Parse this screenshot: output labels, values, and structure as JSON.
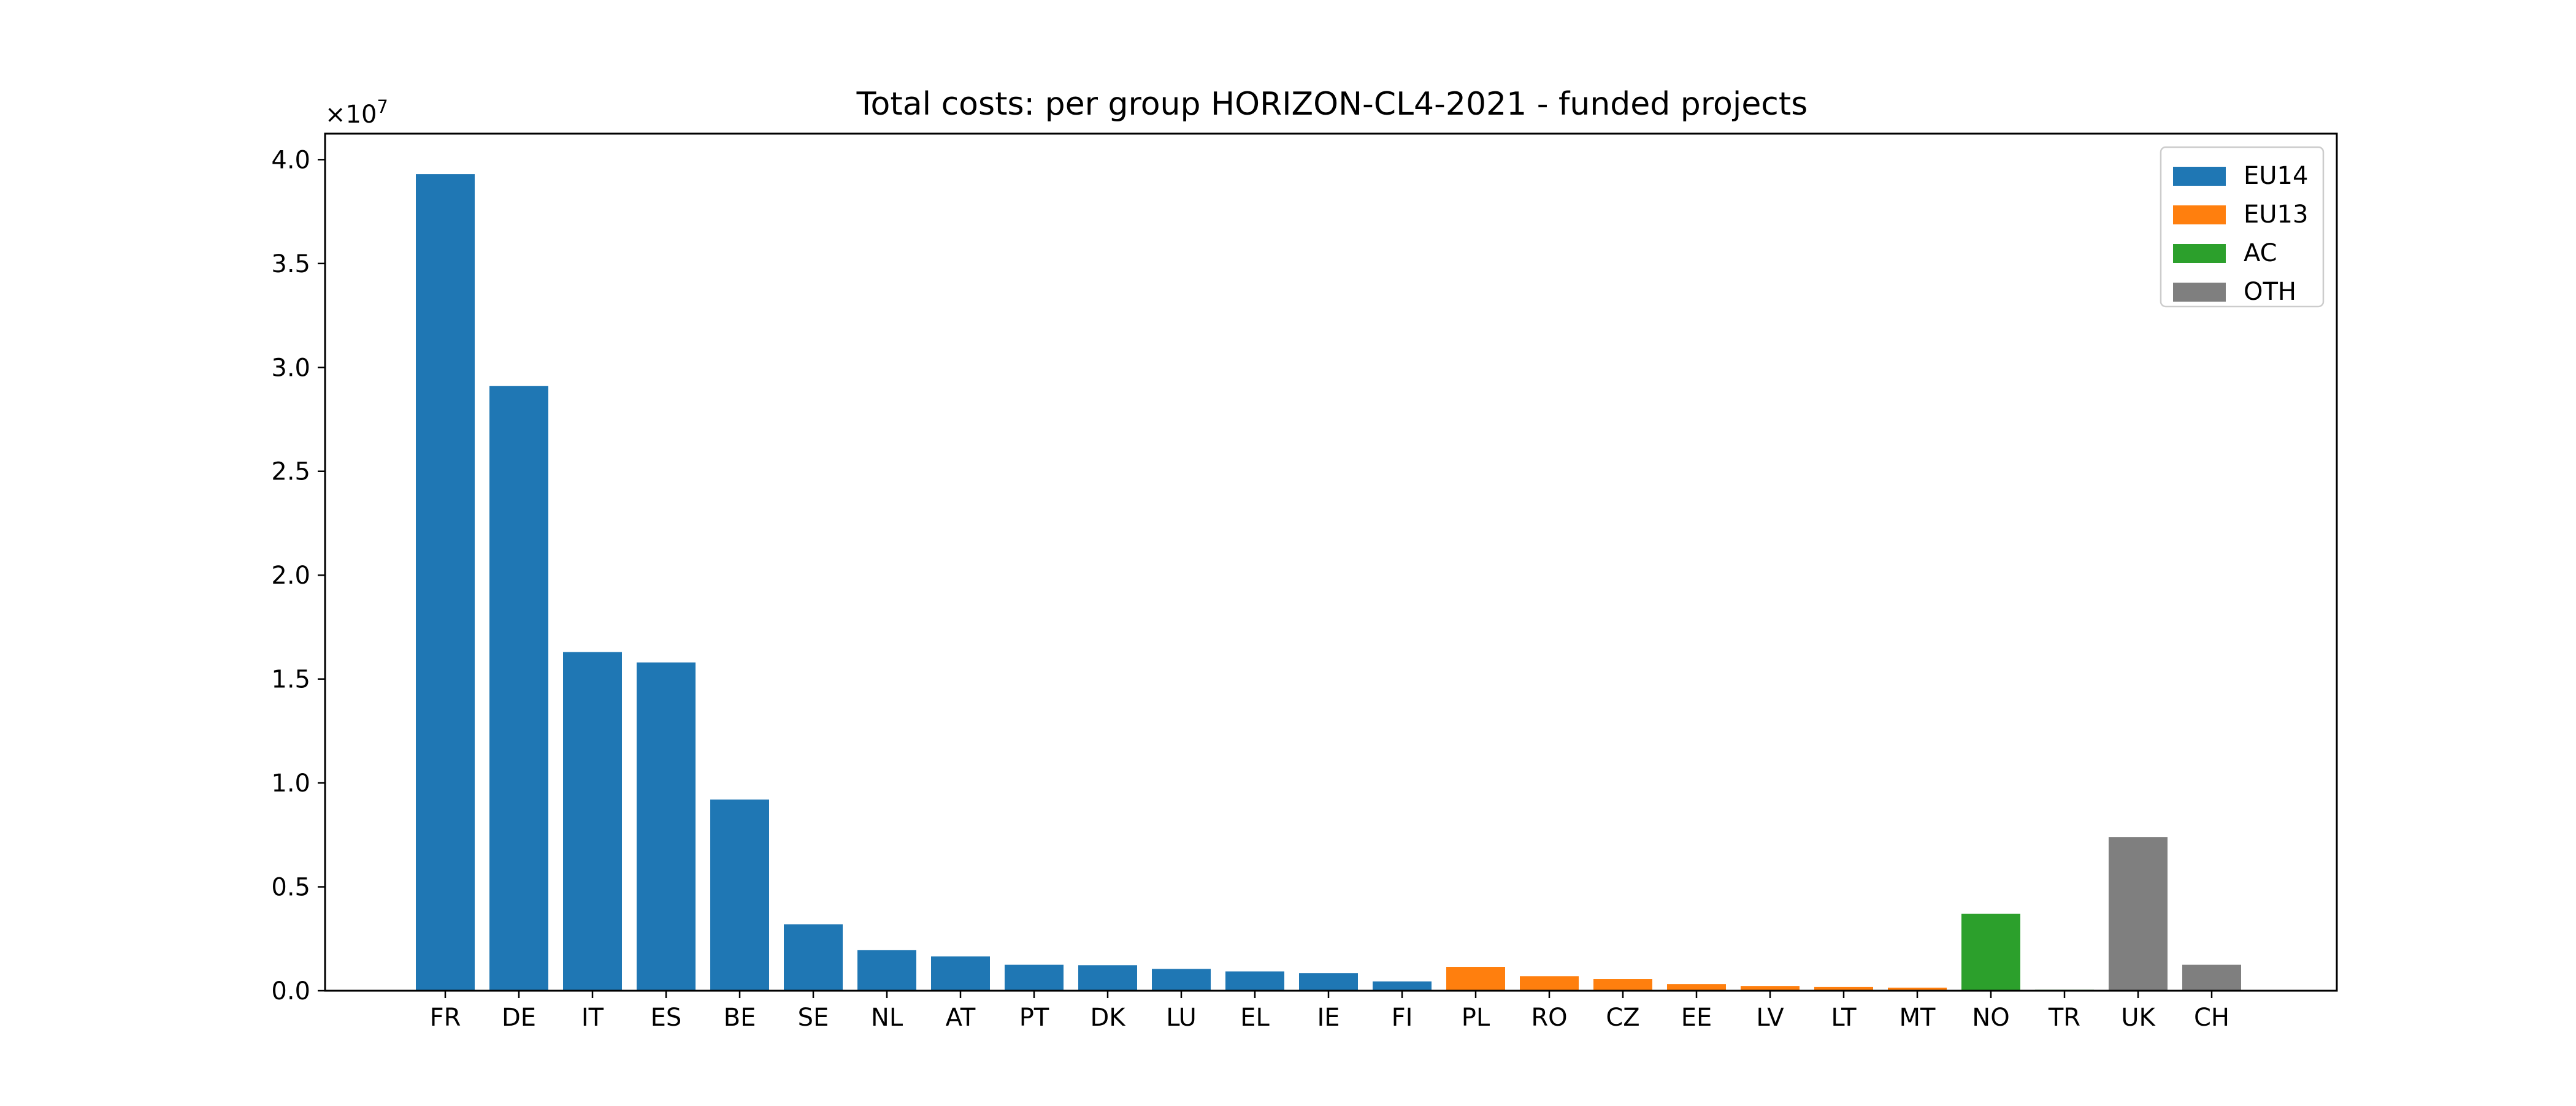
{
  "chart_data": {
    "type": "bar",
    "title": "Total costs: per group HORIZON-CL4-2021 - funded projects",
    "xlabel": "",
    "ylabel": "",
    "y_offset_text": "×10",
    "y_offset_exponent": "7",
    "ylim": [
      0,
      41250000
    ],
    "yticks": [
      0,
      5000000,
      10000000,
      15000000,
      20000000,
      25000000,
      30000000,
      35000000,
      40000000
    ],
    "ytick_labels": [
      "0.0",
      "0.5",
      "1.0",
      "1.5",
      "2.0",
      "2.5",
      "3.0",
      "3.5",
      "4.0"
    ],
    "grid": false,
    "legend_position": "top-right",
    "groups": [
      {
        "name": "EU14",
        "color": "#1f77b4"
      },
      {
        "name": "EU13",
        "color": "#ff7f0e"
      },
      {
        "name": "AC",
        "color": "#2ca02c"
      },
      {
        "name": "OTH",
        "color": "#7f7f7f"
      }
    ],
    "categories": [
      "FR",
      "DE",
      "IT",
      "ES",
      "BE",
      "SE",
      "NL",
      "AT",
      "PT",
      "DK",
      "LU",
      "EL",
      "IE",
      "FI",
      "PL",
      "RO",
      "CZ",
      "EE",
      "LV",
      "LT",
      "MT",
      "NO",
      "TR",
      "UK",
      "CH"
    ],
    "values": [
      39300000,
      29100000,
      16300000,
      15800000,
      9200000,
      3200000,
      1950000,
      1650000,
      1250000,
      1230000,
      1050000,
      930000,
      850000,
      450000,
      1150000,
      700000,
      560000,
      320000,
      230000,
      180000,
      150000,
      3700000,
      50000,
      7400000,
      1250000
    ],
    "bar_groups": [
      "EU14",
      "EU14",
      "EU14",
      "EU14",
      "EU14",
      "EU14",
      "EU14",
      "EU14",
      "EU14",
      "EU14",
      "EU14",
      "EU14",
      "EU14",
      "EU14",
      "EU13",
      "EU13",
      "EU13",
      "EU13",
      "EU13",
      "EU13",
      "EU13",
      "AC",
      "AC",
      "OTH",
      "OTH"
    ]
  }
}
